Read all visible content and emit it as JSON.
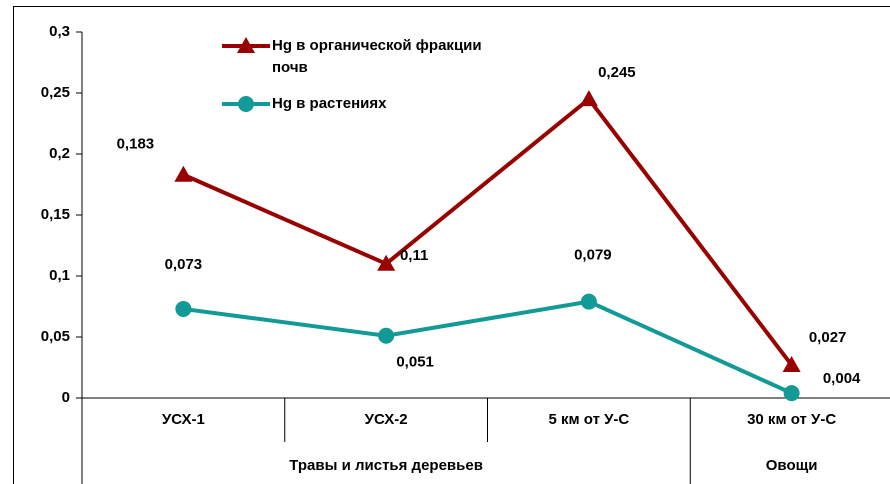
{
  "chart_data": {
    "type": "line",
    "groups": [
      {
        "name": "Травы и листья деревьев",
        "categories": [
          "УСХ-1",
          "УСХ-2",
          "5 км от У-С"
        ]
      },
      {
        "name": "Овощи",
        "categories": [
          "30 км от У-С"
        ]
      }
    ],
    "series": [
      {
        "name": "Hg в органической фракции почв",
        "color": "#990000",
        "marker": "triangle",
        "values": [
          0.183,
          0.11,
          0.245,
          0.027
        ],
        "value_labels": [
          "0,183",
          "0,11",
          "0,245",
          "0,027"
        ]
      },
      {
        "name": "Hg в растениях",
        "color": "#129a96",
        "marker": "circle",
        "values": [
          0.073,
          0.051,
          0.079,
          0.004
        ],
        "value_labels": [
          "0,073",
          "0,051",
          "0,079",
          "0,004"
        ]
      }
    ],
    "ylim": [
      0,
      0.3
    ],
    "yticks": [
      0,
      {
        "value": 0.05,
        "label": "0,05"
      },
      {
        "value": 0.1,
        "label": "0,1"
      },
      {
        "value": 0.15,
        "label": "0,15"
      },
      {
        "value": 0.2,
        "label": "0,2"
      },
      {
        "value": 0.25,
        "label": "0,25"
      },
      {
        "value": 0.3,
        "label": "0,3"
      }
    ],
    "grid": false
  }
}
